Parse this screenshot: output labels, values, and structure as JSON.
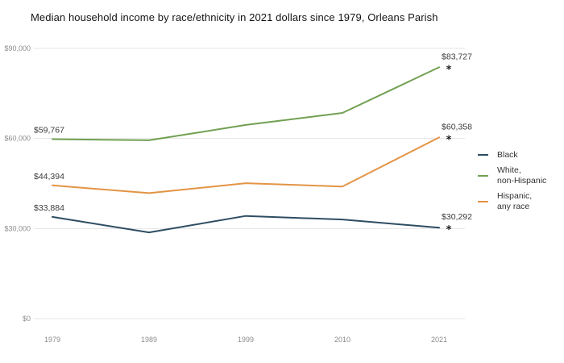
{
  "title": "Median household income by race/ethnicity in 2021 dollars since 1979, Orleans Parish",
  "chart_data": {
    "type": "line",
    "title": "Median household income by race/ethnicity in 2021 dollars since 1979, Orleans Parish",
    "x": [
      "1979",
      "1989",
      "1999",
      "2010",
      "2021"
    ],
    "series": [
      {
        "name": "Black",
        "color": "#2d4d63",
        "values": [
          33884,
          28700,
          34200,
          33000,
          30292
        ],
        "start_label": "$33,884",
        "end_label": "$30,292",
        "end_marker": "*"
      },
      {
        "name": "White,\nnon-Hispanic",
        "color": "#71a052",
        "values": [
          59767,
          59400,
          64500,
          68500,
          83727
        ],
        "start_label": "$59,767",
        "end_label": "$83,727",
        "end_marker": "*"
      },
      {
        "name": "Hispanic,\nany race",
        "color": "#e39445",
        "values": [
          44394,
          41800,
          45100,
          44000,
          60358
        ],
        "start_label": "$44,394",
        "end_label": "$60,358",
        "end_marker": "*"
      }
    ],
    "y_ticks": [
      {
        "label": "$0",
        "value": 0
      },
      {
        "label": "$30,000",
        "value": 30000
      },
      {
        "label": "$60,000",
        "value": 60000
      },
      {
        "label": "$90,000",
        "value": 90000
      }
    ],
    "ylim": [
      0,
      90000
    ],
    "xlabel": "",
    "ylabel": "",
    "grid": "horizontal",
    "legend_position": "right"
  }
}
